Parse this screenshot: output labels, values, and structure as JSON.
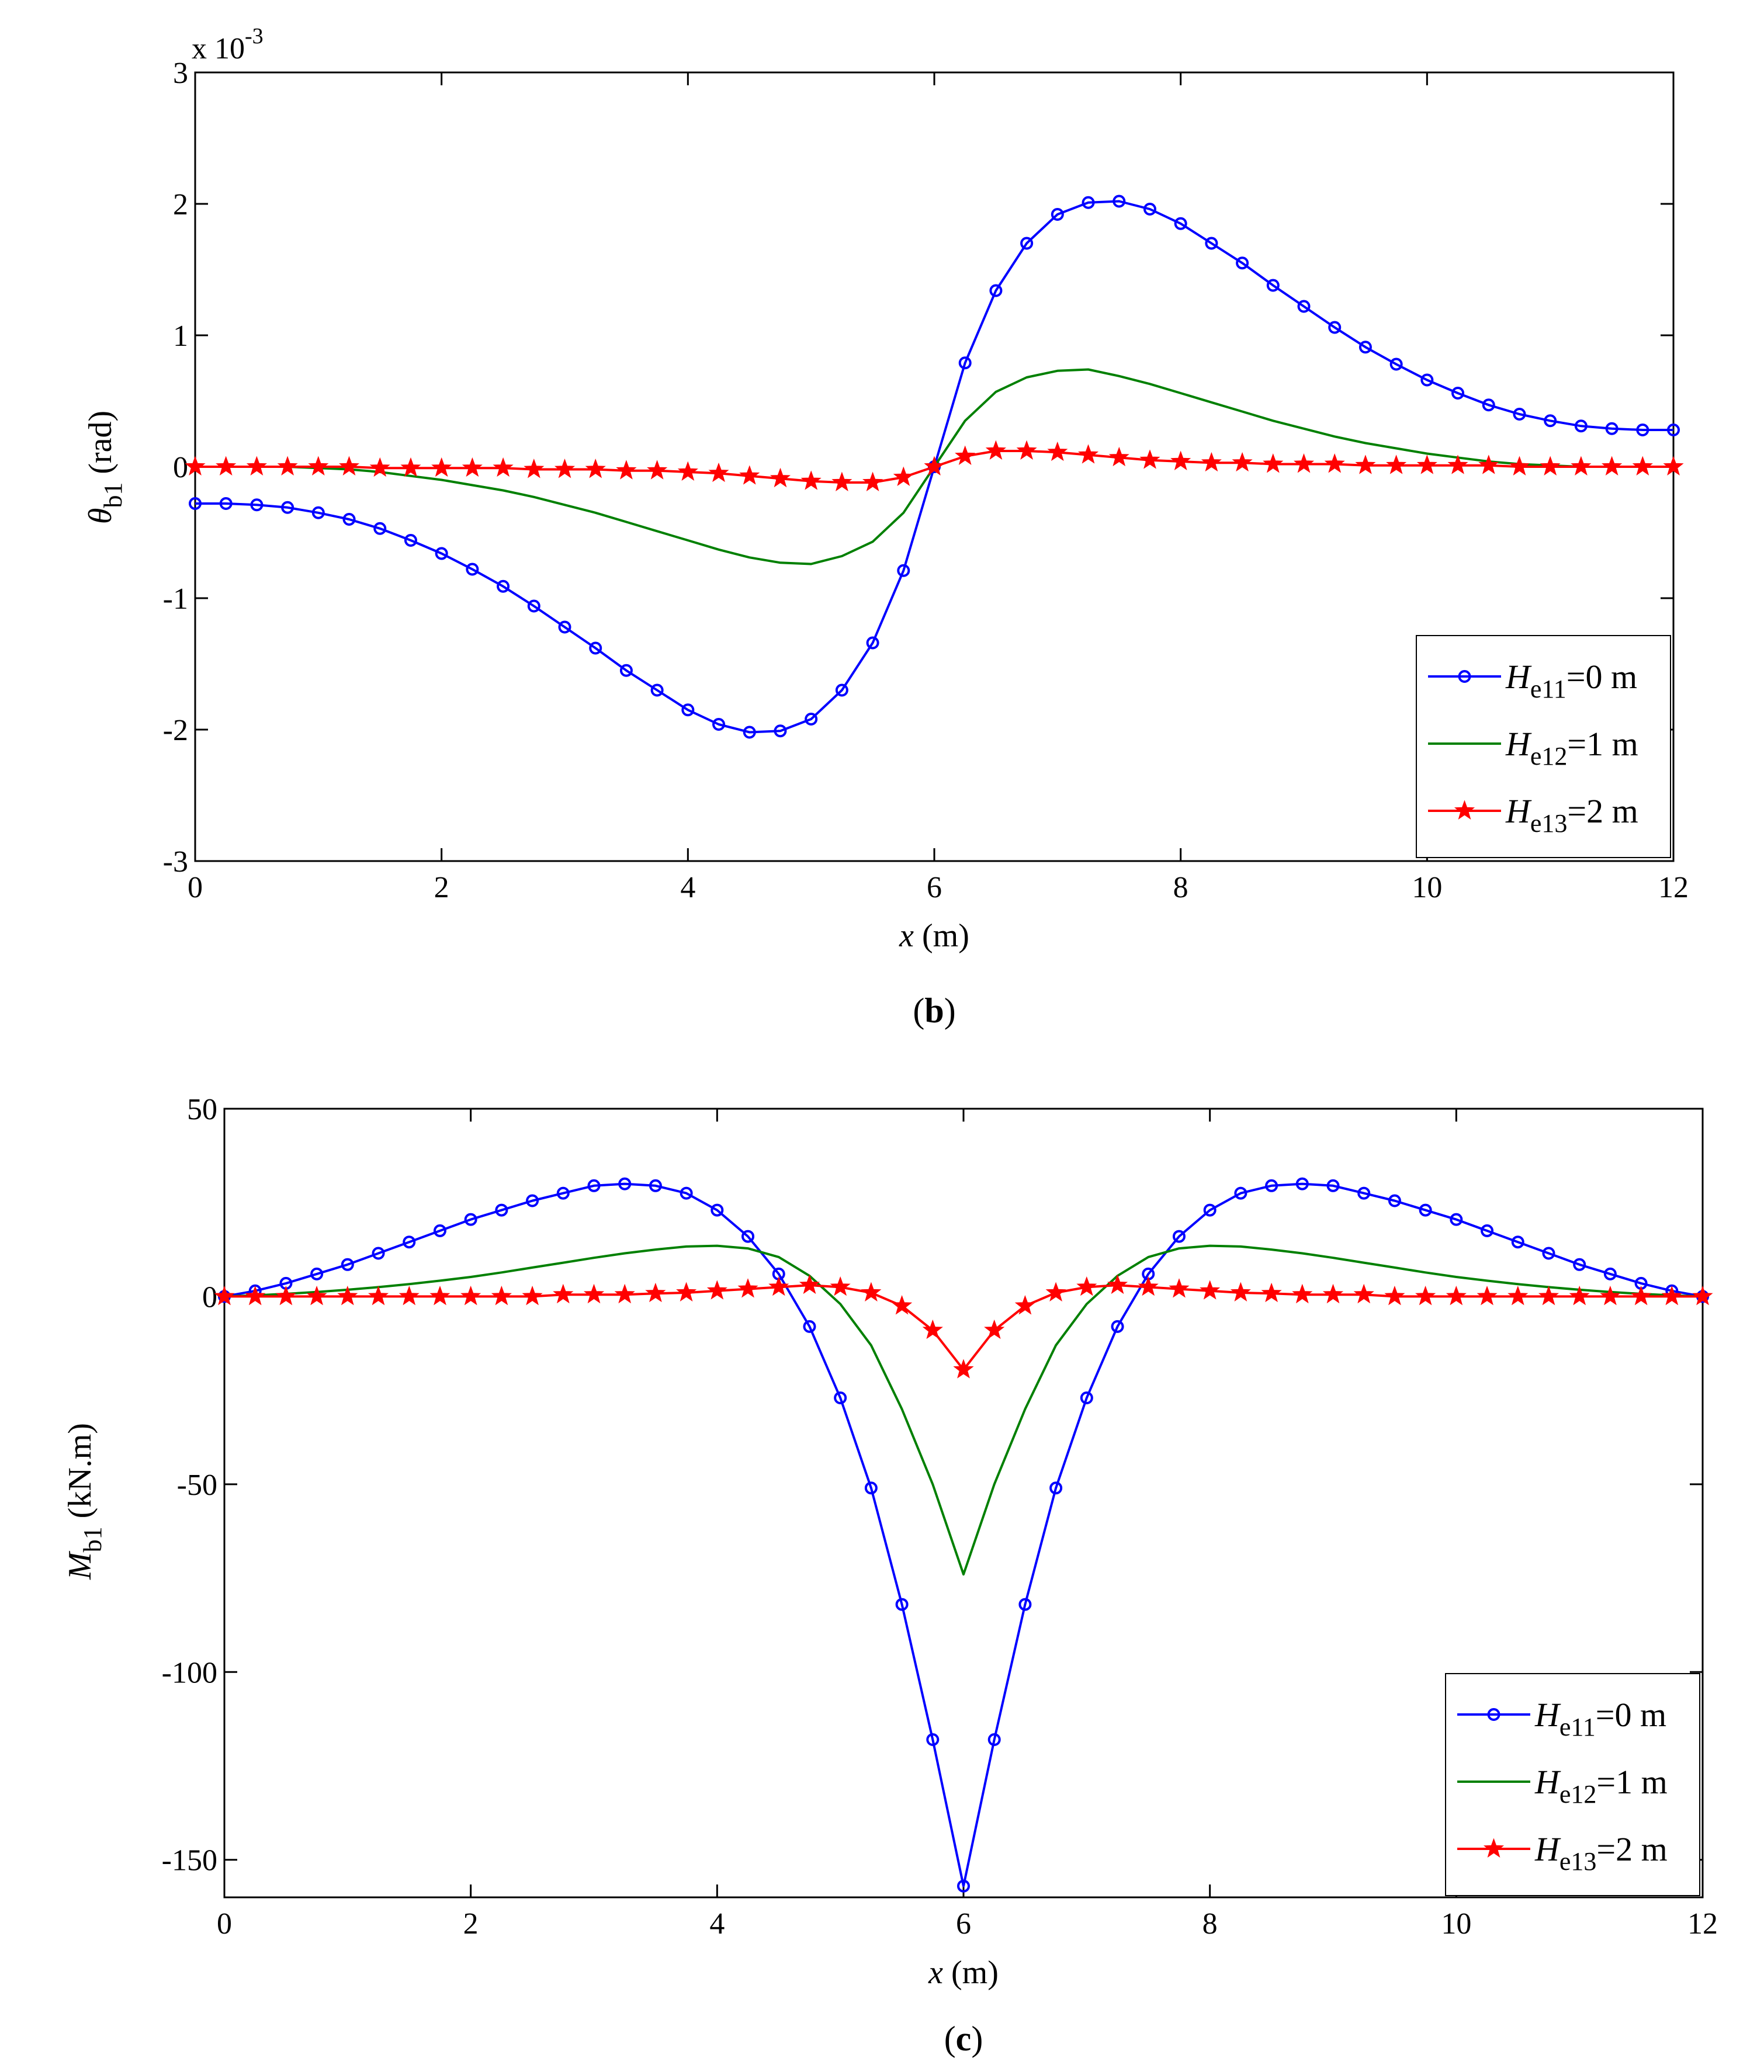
{
  "figures": {
    "b": {
      "caption_letter": "b",
      "xlabel_var": "x",
      "xlabel_unit": " (m)"
    },
    "c": {
      "caption_letter": "c",
      "xlabel_var": "x",
      "xlabel_unit": " (m)"
    }
  },
  "chart_data": [
    {
      "id": "b",
      "type": "line",
      "title": "",
      "caption": "(b)",
      "xlabel": "x (m)",
      "ylabel": "θb1 (rad)",
      "y_multiplier": "x 10-3",
      "xlim": [
        0,
        12
      ],
      "ylim": [
        -3,
        3
      ],
      "xticks": [
        0,
        2,
        4,
        6,
        8,
        10,
        12
      ],
      "yticks": [
        -3,
        -2,
        -1,
        0,
        1,
        2,
        3
      ],
      "grid": false,
      "legend_position": "bottom-right",
      "x": [
        0,
        0.25,
        0.5,
        0.75,
        1,
        1.25,
        1.5,
        1.75,
        2,
        2.25,
        2.5,
        2.75,
        3,
        3.25,
        3.5,
        3.75,
        4,
        4.25,
        4.5,
        4.75,
        5,
        5.25,
        5.5,
        5.75,
        6,
        6.25,
        6.5,
        6.75,
        7,
        7.25,
        7.5,
        7.75,
        8,
        8.25,
        8.5,
        8.75,
        9,
        9.25,
        9.5,
        9.75,
        10,
        10.25,
        10.5,
        10.75,
        11,
        11.25,
        11.5,
        11.75,
        12
      ],
      "series": [
        {
          "name": "He11=0 m",
          "legend_var": "H",
          "legend_sub": "e11",
          "legend_val": "=0 m",
          "color": "#0000ff",
          "marker": "circle",
          "values": [
            -0.28,
            -0.28,
            -0.29,
            -0.31,
            -0.35,
            -0.4,
            -0.47,
            -0.56,
            -0.66,
            -0.78,
            -0.91,
            -1.06,
            -1.22,
            -1.38,
            -1.55,
            -1.7,
            -1.85,
            -1.96,
            -2.02,
            -2.01,
            -1.92,
            -1.7,
            -1.34,
            -0.79,
            0.0,
            0.79,
            1.34,
            1.7,
            1.92,
            2.01,
            2.02,
            1.96,
            1.85,
            1.7,
            1.55,
            1.38,
            1.22,
            1.06,
            0.91,
            0.78,
            0.66,
            0.56,
            0.47,
            0.4,
            0.35,
            0.31,
            0.29,
            0.28,
            0.28
          ]
        },
        {
          "name": "He12=1 m",
          "legend_var": "H",
          "legend_sub": "e12",
          "legend_val": "=1 m",
          "color": "#008000",
          "marker": "none",
          "values": [
            0,
            0,
            0,
            0,
            -0.01,
            -0.02,
            -0.04,
            -0.07,
            -0.1,
            -0.14,
            -0.18,
            -0.23,
            -0.29,
            -0.35,
            -0.42,
            -0.49,
            -0.56,
            -0.63,
            -0.69,
            -0.73,
            -0.74,
            -0.68,
            -0.57,
            -0.35,
            0.0,
            0.35,
            0.57,
            0.68,
            0.73,
            0.74,
            0.69,
            0.63,
            0.56,
            0.49,
            0.42,
            0.35,
            0.29,
            0.23,
            0.18,
            0.14,
            0.1,
            0.07,
            0.04,
            0.02,
            0.01,
            0,
            0,
            0,
            0
          ]
        },
        {
          "name": "He13=2 m",
          "legend_var": "H",
          "legend_sub": "e13",
          "legend_val": "=2 m",
          "color": "#ff0000",
          "marker": "star",
          "values": [
            0,
            0,
            0,
            0,
            0,
            0,
            -0.01,
            -0.01,
            -0.01,
            -0.01,
            -0.01,
            -0.02,
            -0.02,
            -0.02,
            -0.03,
            -0.03,
            -0.04,
            -0.05,
            -0.07,
            -0.09,
            -0.11,
            -0.12,
            -0.12,
            -0.08,
            0.0,
            0.08,
            0.12,
            0.12,
            0.11,
            0.09,
            0.07,
            0.05,
            0.04,
            0.03,
            0.03,
            0.02,
            0.02,
            0.02,
            0.01,
            0.01,
            0.01,
            0.01,
            0.01,
            0,
            0,
            0,
            0,
            0,
            0
          ]
        }
      ]
    },
    {
      "id": "c",
      "type": "line",
      "title": "",
      "caption": "(c)",
      "xlabel": "x (m)",
      "ylabel": "Mb1 (kN.m)",
      "xlim": [
        0,
        12
      ],
      "ylim": [
        -160,
        50
      ],
      "xticks": [
        0,
        2,
        4,
        6,
        8,
        10,
        12
      ],
      "yticks": [
        -150,
        -100,
        -50,
        0,
        50
      ],
      "grid": false,
      "legend_position": "bottom-right",
      "x": [
        0,
        0.25,
        0.5,
        0.75,
        1,
        1.25,
        1.5,
        1.75,
        2,
        2.25,
        2.5,
        2.75,
        3,
        3.25,
        3.5,
        3.75,
        4,
        4.25,
        4.5,
        4.75,
        5,
        5.25,
        5.5,
        5.75,
        6,
        6.25,
        6.5,
        6.75,
        7,
        7.25,
        7.5,
        7.75,
        8,
        8.25,
        8.5,
        8.75,
        9,
        9.25,
        9.5,
        9.75,
        10,
        10.25,
        10.5,
        10.75,
        11,
        11.25,
        11.5,
        11.75,
        12
      ],
      "series": [
        {
          "name": "He11=0 m",
          "legend_var": "H",
          "legend_sub": "e11",
          "legend_val": "=0 m",
          "color": "#0000ff",
          "marker": "circle",
          "values": [
            0,
            1.5,
            3.5,
            6,
            8.5,
            11.5,
            14.5,
            17.5,
            20.5,
            23,
            25.5,
            27.5,
            29.5,
            30,
            29.5,
            27.5,
            23,
            16,
            6,
            -8,
            -27,
            -51,
            -82,
            -118,
            -157,
            -118,
            -82,
            -51,
            -27,
            -8,
            6,
            16,
            23,
            27.5,
            29.5,
            30,
            29.5,
            27.5,
            25.5,
            23,
            20.5,
            17.5,
            14.5,
            11.5,
            8.5,
            6,
            3.5,
            1.5,
            0
          ]
        },
        {
          "name": "He12=1 m",
          "legend_var": "H",
          "legend_sub": "e12",
          "legend_val": "=1 m",
          "color": "#008000",
          "marker": "none",
          "values": [
            0,
            0.3,
            0.7,
            1.2,
            1.8,
            2.5,
            3.3,
            4.2,
            5.2,
            6.4,
            7.7,
            9,
            10.3,
            11.5,
            12.5,
            13.3,
            13.5,
            12.8,
            10.5,
            5.5,
            -2,
            -13,
            -30,
            -50,
            -74,
            -50,
            -30,
            -13,
            -2,
            5.5,
            10.5,
            12.8,
            13.5,
            13.3,
            12.5,
            11.5,
            10.3,
            9,
            7.7,
            6.4,
            5.2,
            4.2,
            3.3,
            2.5,
            1.8,
            1.2,
            0.7,
            0.3,
            0
          ]
        },
        {
          "name": "He13=2 m",
          "legend_var": "H",
          "legend_sub": "e13",
          "legend_val": "=2 m",
          "color": "#ff0000",
          "marker": "star",
          "values": [
            0,
            0,
            0,
            0,
            0,
            0,
            0,
            0,
            0,
            0,
            0,
            0.5,
            0.5,
            0.5,
            0.8,
            1,
            1.5,
            2,
            2.5,
            3,
            2.5,
            1,
            -2.5,
            -9,
            -19.5,
            -9,
            -2.5,
            1,
            2.5,
            3,
            2.5,
            2,
            1.5,
            1,
            0.8,
            0.5,
            0.5,
            0.5,
            0,
            0,
            0,
            0,
            0,
            0,
            0,
            0,
            0,
            0,
            0
          ]
        }
      ]
    }
  ]
}
